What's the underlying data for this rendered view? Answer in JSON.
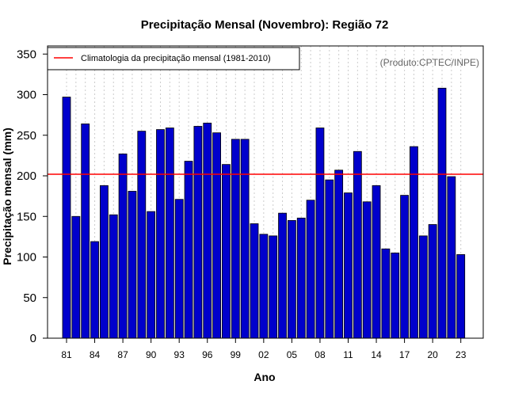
{
  "chart_data": {
    "type": "bar",
    "title": "Precipitação Mensal (Novembro): Região 72",
    "xlabel": "Ano",
    "ylabel": "Precipitação mensal (mm)",
    "ylim": [
      0,
      360
    ],
    "yticks": [
      0,
      50,
      100,
      150,
      200,
      250,
      300,
      350
    ],
    "years": [
      1981,
      1982,
      1983,
      1984,
      1985,
      1986,
      1987,
      1988,
      1989,
      1990,
      1991,
      1992,
      1993,
      1994,
      1995,
      1996,
      1997,
      1998,
      1999,
      2000,
      2001,
      2002,
      2003,
      2004,
      2005,
      2006,
      2007,
      2008,
      2009,
      2010,
      2011,
      2012,
      2013,
      2014,
      2015,
      2016,
      2017,
      2018,
      2019,
      2020,
      2021,
      2022,
      2023
    ],
    "values": [
      297,
      150,
      264,
      119,
      188,
      152,
      227,
      181,
      255,
      156,
      257,
      259,
      171,
      218,
      261,
      265,
      253,
      214,
      245,
      245,
      141,
      128,
      126,
      154,
      145,
      148,
      170,
      259,
      195,
      207,
      179,
      230,
      168,
      188,
      110,
      105,
      176,
      236,
      126,
      140,
      308,
      199,
      103
    ],
    "xtick_labels": [
      "81",
      "84",
      "87",
      "90",
      "93",
      "96",
      "99",
      "02",
      "05",
      "08",
      "11",
      "14",
      "17",
      "20",
      "23"
    ],
    "xtick_years": [
      1981,
      1984,
      1987,
      1990,
      1993,
      1996,
      1999,
      2002,
      2005,
      2008,
      2011,
      2014,
      2017,
      2020,
      2023
    ],
    "climatology": {
      "label": "Climatologia da precipitação mensal (1981-2010)",
      "value": 202,
      "color": "#ff0000"
    },
    "credit": "(Produto:CPTEC/INPE)",
    "bar_color": "#0000cc",
    "legend_position": "top-left",
    "grid": "vertical-dotted"
  }
}
